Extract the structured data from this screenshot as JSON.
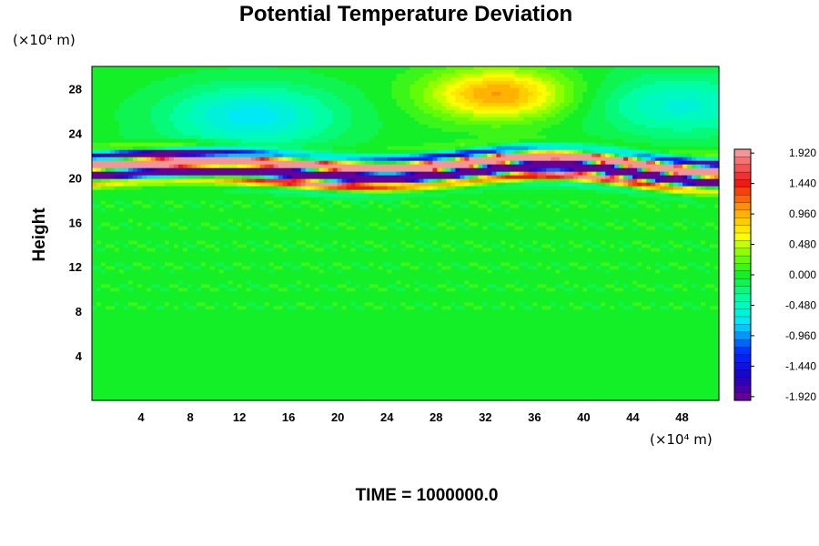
{
  "chart_data": {
    "type": "heatmap",
    "title": "Potential Temperature Deviation",
    "ylabel": "Height",
    "y_unit": "(×10⁴ m)",
    "x_unit": "(×10⁴ m)",
    "footer": "TIME = 1000000.0",
    "xlim": [
      0,
      51
    ],
    "ylim": [
      0,
      30
    ],
    "x_ticks": [
      4,
      8,
      12,
      16,
      20,
      24,
      28,
      32,
      36,
      40,
      44,
      48
    ],
    "x_tick_labels": [
      "4",
      "8",
      "12",
      "16",
      "20",
      "24",
      "28",
      "32",
      "36",
      "40",
      "44",
      "48"
    ],
    "y_ticks": [
      4,
      8,
      12,
      16,
      20,
      24,
      28
    ],
    "y_tick_labels": [
      "4",
      "8",
      "12",
      "16",
      "20",
      "24",
      "28"
    ],
    "colorbar": {
      "range": [
        -1.92,
        1.92
      ],
      "levels": 33,
      "tick_values": [
        1.92,
        1.44,
        0.96,
        0.48,
        0.0,
        -0.48,
        -0.96,
        -1.44,
        -1.92
      ],
      "tick_labels": [
        "1.920",
        "1.440",
        "0.960",
        "0.480",
        "0.000",
        "-0.480",
        "-0.960",
        "-1.440",
        "-1.920"
      ]
    },
    "features": [
      {
        "kind": "warm_anomaly",
        "x": 33,
        "y": 27.5,
        "peak": 1.0
      },
      {
        "kind": "cool_region",
        "x": 13,
        "y": 25.5,
        "value": -0.7
      },
      {
        "kind": "cool_region",
        "x": 48,
        "y": 26.5,
        "value": -0.55
      },
      {
        "kind": "oscillating_layer",
        "y_center": 20.8,
        "amplitude": 1.92
      }
    ],
    "grid": false
  }
}
